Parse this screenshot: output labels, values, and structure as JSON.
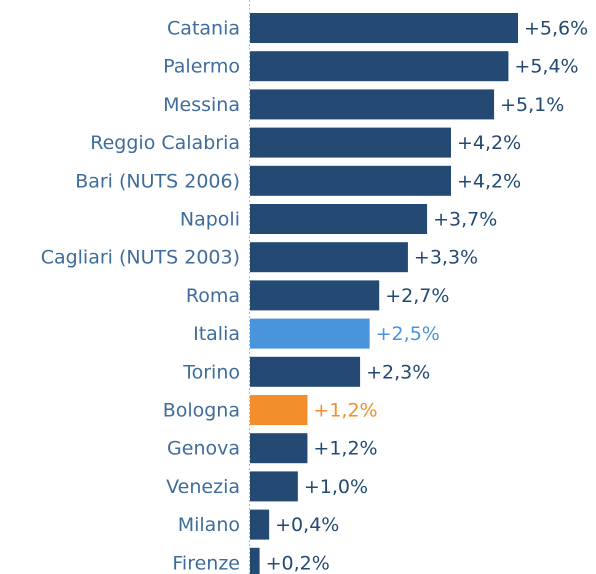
{
  "chart_data": {
    "type": "bar",
    "orientation": "horizontal",
    "categories": [
      "Catania",
      "Palermo",
      "Messina",
      "Reggio Calabria",
      "Bari (NUTS 2006)",
      "Napoli",
      "Cagliari (NUTS 2003)",
      "Roma",
      "Italia",
      "Torino",
      "Bologna",
      "Genova",
      "Venezia",
      "Milano",
      "Firenze"
    ],
    "values": [
      5.6,
      5.4,
      5.1,
      4.2,
      4.2,
      3.7,
      3.3,
      2.7,
      2.5,
      2.3,
      1.2,
      1.2,
      1.0,
      0.4,
      0.2
    ],
    "value_labels": [
      "+5,6%",
      "+5,4%",
      "+5,1%",
      "+4,2%",
      "+4,2%",
      "+3,7%",
      "+3,3%",
      "+2,7%",
      "+2,5%",
      "+2,3%",
      "+1,2%",
      "+1,2%",
      "+1,0%",
      "+0,4%",
      "+0,2%"
    ],
    "colors": [
      "#244a73",
      "#244a73",
      "#244a73",
      "#244a73",
      "#244a73",
      "#244a73",
      "#244a73",
      "#244a73",
      "#4a94dc",
      "#244a73",
      "#f28e2b",
      "#244a73",
      "#244a73",
      "#244a73",
      "#244a73"
    ],
    "xlim": [
      0,
      7
    ]
  }
}
